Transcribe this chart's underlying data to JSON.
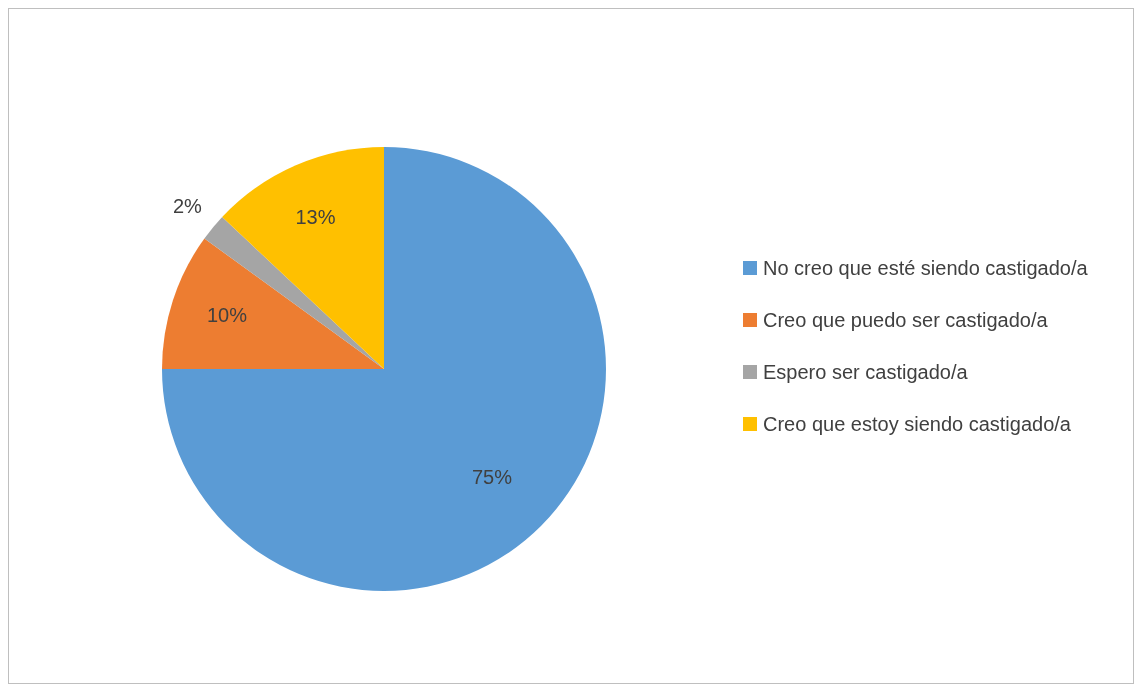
{
  "chart_data": {
    "type": "pie",
    "categories": [
      "No creo que esté siendo castigado/a",
      "Creo que puedo ser castigado/a",
      "Espero ser castigado/a",
      "Creo que estoy siendo castigado/a"
    ],
    "values": [
      75,
      10,
      2,
      13
    ],
    "colors": [
      "#5b9bd5",
      "#ed7d31",
      "#a5a5a5",
      "#ffc000"
    ],
    "value_labels": [
      "75%",
      "10%",
      "2%",
      "13%"
    ],
    "legend": "right"
  }
}
